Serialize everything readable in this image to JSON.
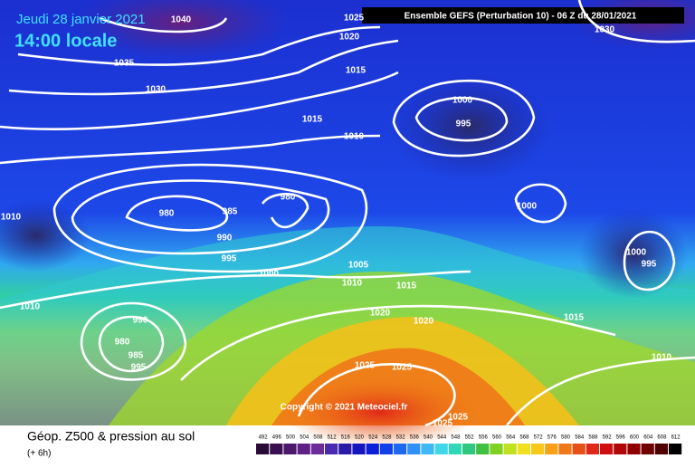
{
  "header": {
    "date": "Jeudi 28 janvier 2021",
    "time": "14:00 locale",
    "run": "Ensemble GEFS  (Perturbation 10)  - 06 Z du 28/01/2021"
  },
  "copyright": "Copyright © 2021 Meteociel.fr",
  "footer": {
    "title": "Géop. Z500 & pression au sol",
    "lead": "(+ 6h)"
  },
  "scale": [
    492,
    496,
    500,
    504,
    508,
    512,
    516,
    520,
    524,
    528,
    532,
    536,
    540,
    544,
    548,
    552,
    556,
    560,
    564,
    568,
    572,
    576,
    580,
    584,
    588,
    592,
    596,
    600,
    604,
    608,
    612
  ],
  "isobar_labels": [
    1040,
    1035,
    1030,
    1025,
    1020,
    1015,
    1015,
    1010,
    1000,
    995,
    1030,
    1000,
    980,
    980,
    985,
    990,
    995,
    1010,
    1000,
    1005,
    1010,
    1015,
    1020,
    1020,
    1000,
    995,
    1015,
    1010,
    1010,
    990,
    980,
    985,
    995,
    1025,
    1025,
    1025,
    1025
  ]
}
